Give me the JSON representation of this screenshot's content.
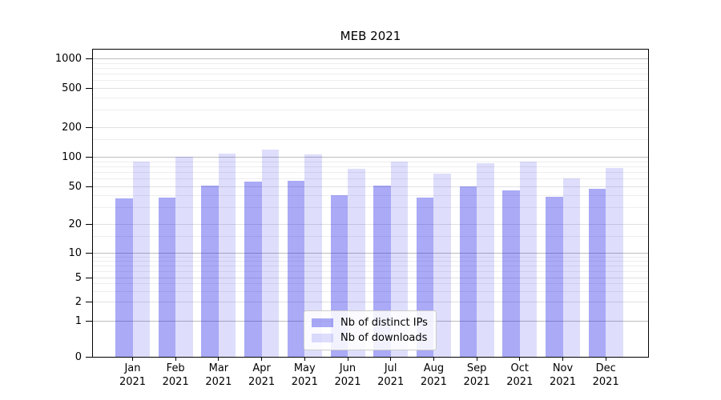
{
  "chart_data": {
    "type": "bar",
    "title": "MEB 2021",
    "categories": [
      "Jan 2021",
      "Feb 2021",
      "Mar 2021",
      "Apr 2021",
      "May 2021",
      "Jun 2021",
      "Jul 2021",
      "Aug 2021",
      "Sep 2021",
      "Oct 2021",
      "Nov 2021",
      "Dec 2021"
    ],
    "series": [
      {
        "name": "Nb of distinct IPs",
        "color": "rgba(10,10,230,0.345)",
        "values": [
          37,
          38,
          51,
          56,
          57,
          40,
          51,
          38,
          50,
          45,
          39,
          47
        ]
      },
      {
        "name": "Nb of downloads",
        "color": "rgba(10,10,230,0.135)",
        "values": [
          90,
          100,
          108,
          118,
          106,
          75,
          89,
          68,
          86,
          89,
          60,
          77
        ]
      }
    ],
    "y_axis": {
      "scale": "symlog",
      "ticks": [
        0,
        1,
        2,
        5,
        10,
        20,
        50,
        100,
        200,
        500,
        1000
      ],
      "ylim": [
        0,
        1260
      ]
    },
    "xlabel": "",
    "ylabel": "",
    "legend": {
      "position": "lower center"
    },
    "grid": "on"
  }
}
